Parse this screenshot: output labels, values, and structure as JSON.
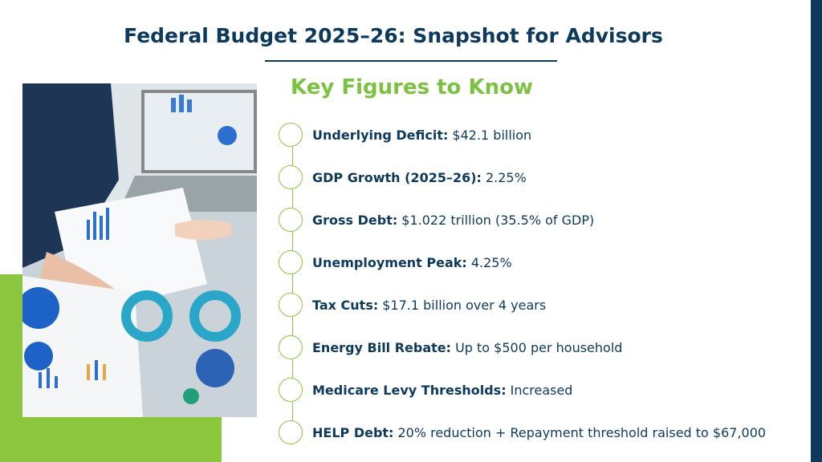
{
  "title": "Federal Budget 2025–26: Snapshot for Advisors",
  "heading": "Key Figures to Know",
  "items": [
    {
      "label": "Underlying Deficit:",
      "value": "$42.1 billion"
    },
    {
      "label": "GDP Growth (2025–26):",
      "value": "2.25%"
    },
    {
      "label": "Gross Debt:",
      "value": "$1.022 trillion (35.5% of GDP)"
    },
    {
      "label": "Unemployment Peak:",
      "value": "4.25%"
    },
    {
      "label": "Tax Cuts:",
      "value": "$17.1 billion over 4 years"
    },
    {
      "label": "Energy Bill Rebate:",
      "value": "Up to $500 per household"
    },
    {
      "label": "Medicare Levy Thresholds:",
      "value": "Increased"
    },
    {
      "label": "HELP Debt:",
      "value": "20% reduction + Repayment threshold raised to $67,000"
    }
  ]
}
